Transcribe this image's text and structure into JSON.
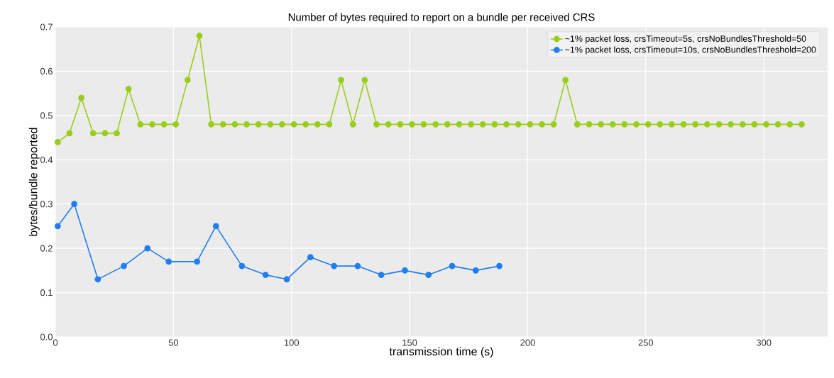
{
  "chart_data": {
    "type": "line",
    "title": "Number of bytes required to report on a bundle per received CRS",
    "xlabel": "transmission time (s)",
    "ylabel": "bytes/bundle reported",
    "series": [
      {
        "name": "~1% packet loss, crsTimeout=5s, crsNoBundlesThreshold=50",
        "color": "#9acd1a",
        "x": [
          1,
          6,
          11,
          16,
          21,
          26,
          31,
          36,
          41,
          46,
          51,
          56,
          61,
          66,
          71,
          76,
          81,
          86,
          91,
          96,
          101,
          106,
          111,
          116,
          121,
          126,
          131,
          136,
          141,
          146,
          151,
          156,
          161,
          166,
          171,
          176,
          181,
          186,
          191,
          196,
          201,
          206,
          211,
          216,
          221,
          226,
          231,
          236,
          241,
          246,
          251,
          256,
          261,
          266,
          271,
          276,
          281,
          286,
          291,
          296,
          301,
          306,
          311,
          316
        ],
        "values": [
          0.44,
          0.46,
          0.54,
          0.46,
          0.46,
          0.46,
          0.56,
          0.48,
          0.48,
          0.48,
          0.48,
          0.58,
          0.68,
          0.48,
          0.48,
          0.48,
          0.48,
          0.48,
          0.48,
          0.48,
          0.48,
          0.48,
          0.48,
          0.48,
          0.58,
          0.48,
          0.58,
          0.48,
          0.48,
          0.48,
          0.48,
          0.48,
          0.48,
          0.48,
          0.48,
          0.48,
          0.48,
          0.48,
          0.48,
          0.48,
          0.48,
          0.48,
          0.48,
          0.58,
          0.48,
          0.48,
          0.48,
          0.48,
          0.48,
          0.48,
          0.48,
          0.48,
          0.48,
          0.48,
          0.48,
          0.48,
          0.48,
          0.48,
          0.48,
          0.48,
          0.48,
          0.48,
          0.48,
          0.48
        ]
      },
      {
        "name": "~1% packet loss, crsTimeout=10s, crsNoBundlesThreshold=200",
        "color": "#1f7ef0",
        "x": [
          1,
          8,
          18,
          29,
          39,
          48,
          60,
          68,
          79,
          89,
          98,
          108,
          118,
          128,
          138,
          148,
          158,
          168,
          178,
          188
        ],
        "values": [
          0.25,
          0.3,
          0.13,
          0.16,
          0.2,
          0.17,
          0.17,
          0.25,
          0.16,
          0.14,
          0.13,
          0.18,
          0.16,
          0.16,
          0.14,
          0.15,
          0.14,
          0.16,
          0.15,
          0.16
        ]
      }
    ],
    "xlim": [
      0,
      327
    ],
    "xticks": [
      0,
      50,
      100,
      150,
      200,
      250,
      300
    ],
    "ylim": [
      0,
      0.7
    ],
    "yticks": [
      {
        "value": 0,
        "label": "0.0"
      },
      0.1,
      0.2,
      0.3,
      0.4,
      0.5,
      0.6,
      0.7
    ],
    "grid": true,
    "legend": "top right",
    "marker": "circle",
    "line_style": "solid"
  }
}
